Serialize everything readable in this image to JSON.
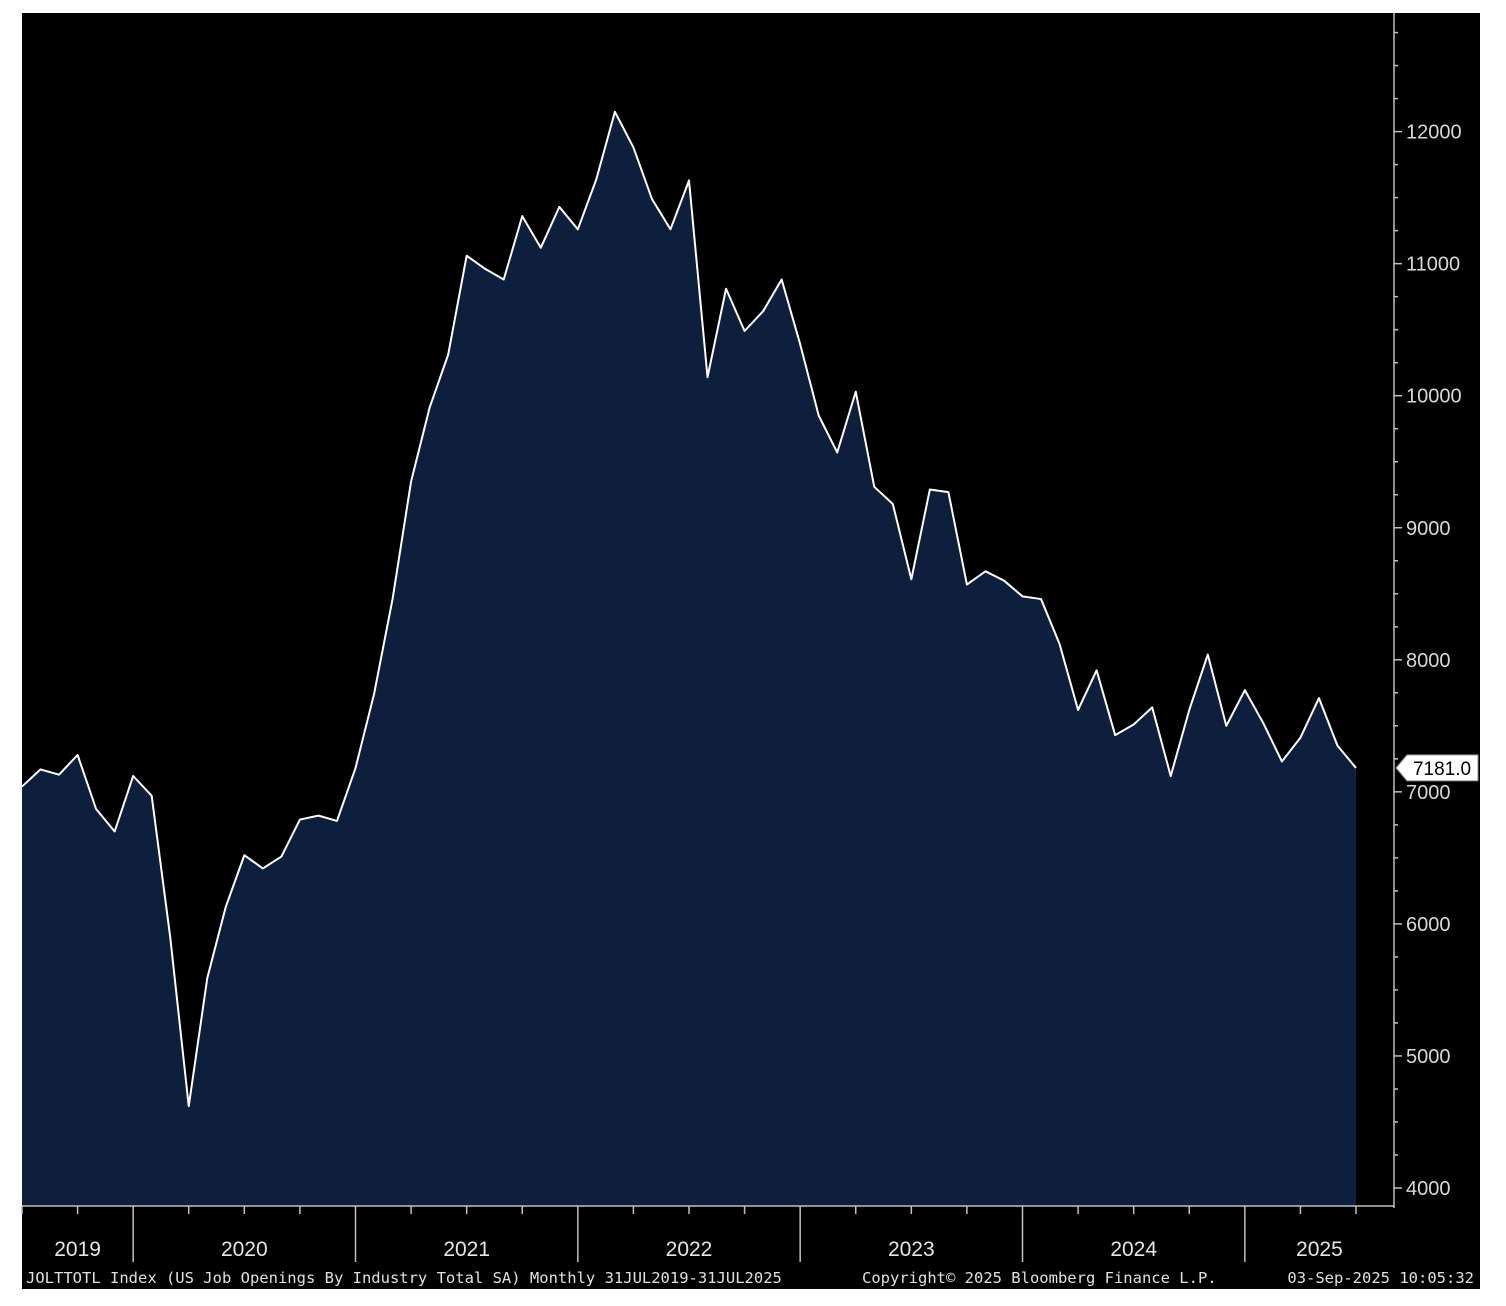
{
  "footer": {
    "index_description": "JOLTTOTL Index (US Job Openings By Industry Total SA)  Monthly 31JUL2019-31JUL2025",
    "copyright": "Copyright© 2025 Bloomberg Finance L.P.",
    "timestamp": "03-Sep-2025 10:05:32"
  },
  "colors": {
    "background": "#000000",
    "area_fill": "#0d1f3c",
    "line": "#ffffff"
  },
  "chart_data": {
    "type": "area",
    "title": "",
    "xlabel": "",
    "ylabel": "",
    "ylim": [
      4000,
      12900
    ],
    "yticks": [
      4000,
      5000,
      6000,
      7000,
      8000,
      9000,
      10000,
      11000,
      12000
    ],
    "ytick_labels": [
      "4000",
      "5000",
      "6000",
      "7000",
      "8000",
      "9000",
      "10000",
      "11000",
      "12000"
    ],
    "year_labels": [
      "2019",
      "2020",
      "2021",
      "2022",
      "2023",
      "2024",
      "2025"
    ],
    "last_value_label": "7181.0",
    "grid": false,
    "series": [
      {
        "x": [
          "2019-07",
          "2019-08",
          "2019-09",
          "2019-10",
          "2019-11",
          "2019-12",
          "2020-01",
          "2020-02",
          "2020-03",
          "2020-04",
          "2020-05",
          "2020-06",
          "2020-07",
          "2020-08",
          "2020-09",
          "2020-10",
          "2020-11",
          "2020-12",
          "2021-01",
          "2021-02",
          "2021-03",
          "2021-04",
          "2021-05",
          "2021-06",
          "2021-07",
          "2021-08",
          "2021-09",
          "2021-10",
          "2021-11",
          "2021-12",
          "2022-01",
          "2022-02",
          "2022-03",
          "2022-04",
          "2022-05",
          "2022-06",
          "2022-07",
          "2022-08",
          "2022-09",
          "2022-10",
          "2022-11",
          "2022-12",
          "2023-01",
          "2023-02",
          "2023-03",
          "2023-04",
          "2023-05",
          "2023-06",
          "2023-07",
          "2023-08",
          "2023-09",
          "2023-10",
          "2023-11",
          "2023-12",
          "2024-01",
          "2024-02",
          "2024-03",
          "2024-04",
          "2024-05",
          "2024-06",
          "2024-07",
          "2024-08",
          "2024-09",
          "2024-10",
          "2024-11",
          "2024-12",
          "2025-01",
          "2025-02",
          "2025-03",
          "2025-04",
          "2025-05",
          "2025-06",
          "2025-07"
        ],
        "values": [
          7040,
          7170,
          7130,
          7280,
          6870,
          6700,
          7120,
          6970,
          5900,
          4620,
          5590,
          6130,
          6520,
          6420,
          6510,
          6790,
          6820,
          6780,
          7180,
          7740,
          8460,
          9350,
          9910,
          10310,
          11060,
          10960,
          10880,
          11360,
          11120,
          11430,
          11260,
          11640,
          12150,
          11880,
          11490,
          11260,
          11630,
          10140,
          10810,
          10490,
          10640,
          10880,
          10390,
          9850,
          9570,
          10030,
          9310,
          9180,
          8610,
          9290,
          9270,
          8570,
          8670,
          8600,
          8480,
          8460,
          8120,
          7620,
          7920,
          7430,
          7510,
          7640,
          7120,
          7620,
          8040,
          7500,
          7770,
          7520,
          7230,
          7410,
          7710,
          7350,
          7181
        ]
      }
    ]
  }
}
